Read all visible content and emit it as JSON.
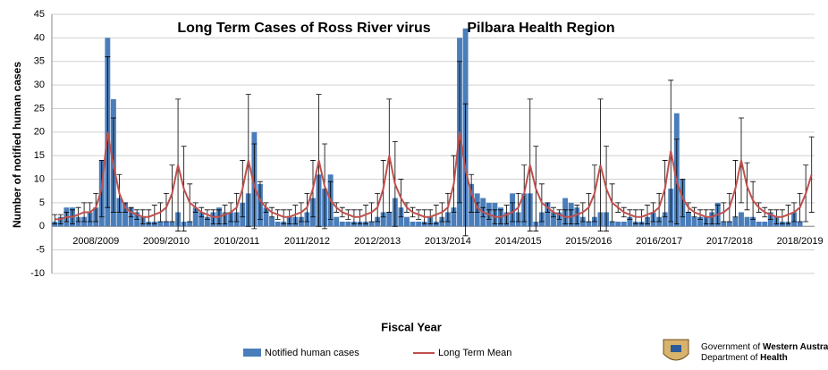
{
  "chart_data": {
    "type": "bar_line",
    "title": "Long Term Cases of Ross River virus",
    "region": "Pilbara Health Region",
    "xlabel": "Fiscal Year",
    "ylabel": "Number of notified human cases",
    "ylim": [
      -10,
      45
    ],
    "yticks": [
      -10,
      -5,
      0,
      5,
      10,
      15,
      20,
      25,
      30,
      35,
      40,
      45
    ],
    "grid": true,
    "categories": [
      null,
      null,
      null,
      null,
      null,
      null,
      null,
      "2008/2009",
      null,
      null,
      null,
      null,
      null,
      null,
      null,
      null,
      null,
      null,
      null,
      "2009/2010",
      null,
      null,
      null,
      null,
      null,
      null,
      null,
      null,
      null,
      null,
      null,
      "2010/2011",
      null,
      null,
      null,
      null,
      null,
      null,
      null,
      null,
      null,
      null,
      null,
      "2011/2012",
      null,
      null,
      null,
      null,
      null,
      null,
      null,
      null,
      null,
      null,
      null,
      "2012/2013",
      null,
      null,
      null,
      null,
      null,
      null,
      null,
      null,
      null,
      null,
      null,
      "2013/2014",
      null,
      null,
      null,
      null,
      null,
      null,
      null,
      null,
      null,
      null,
      null,
      "2014/2015",
      null,
      null,
      null,
      null,
      null,
      null,
      null,
      null,
      null,
      null,
      null,
      "2015/2016",
      null,
      null,
      null,
      null,
      null,
      null,
      null,
      null,
      null,
      null,
      null,
      "2016/2017",
      null,
      null,
      null,
      null,
      null,
      null,
      null,
      null,
      null,
      null,
      null,
      "2017/2018",
      null,
      null,
      null,
      null,
      null,
      null,
      null,
      null,
      null,
      null,
      null,
      "2018/2019",
      null,
      null
    ],
    "series": [
      {
        "name": "Notified human cases",
        "color": "#4a7ebb",
        "values": [
          1,
          2,
          4,
          4,
          2,
          2,
          3,
          4,
          14,
          40,
          27,
          6,
          5,
          4,
          3,
          2,
          1,
          1,
          1,
          1,
          1,
          3,
          1,
          1,
          4,
          3,
          2,
          3,
          4,
          3,
          3,
          3,
          5,
          7,
          20,
          9,
          4,
          2,
          1,
          1,
          2,
          2,
          2,
          3,
          6,
          11,
          8,
          11,
          2,
          1,
          1,
          1,
          1,
          1,
          1,
          2,
          3,
          3,
          6,
          4,
          2,
          1,
          1,
          1,
          2,
          1,
          2,
          3,
          4,
          40,
          42,
          9,
          7,
          6,
          5,
          5,
          4,
          3,
          7,
          3,
          7,
          7,
          1,
          3,
          5,
          3,
          3,
          6,
          5,
          4,
          2,
          1,
          2,
          3,
          3,
          1,
          1,
          1,
          2,
          1,
          1,
          2,
          3,
          2,
          3,
          8,
          24,
          10,
          3,
          2,
          2,
          2,
          3,
          5,
          1,
          1,
          2,
          3,
          2,
          2,
          1,
          1,
          3,
          2,
          1,
          1,
          3,
          1,
          0,
          0
        ]
      },
      {
        "name": "Long Term Mean",
        "color": "#c0504d",
        "values": [
          1.5,
          1.5,
          2,
          2,
          2.5,
          3,
          3,
          4,
          8,
          20,
          13,
          7,
          4,
          3,
          2.5,
          2,
          2,
          2.5,
          3,
          4,
          7,
          13,
          8,
          5,
          4,
          3,
          2.5,
          2,
          2,
          2.5,
          3,
          4,
          8,
          14,
          8.5,
          5.5,
          4,
          3,
          2.5,
          2,
          2,
          2.5,
          3,
          4,
          8,
          14,
          8.5,
          5.5,
          4,
          3,
          2.5,
          2,
          2,
          2.5,
          3,
          4,
          8,
          15,
          9,
          6,
          4,
          3,
          2.5,
          2,
          2,
          2.5,
          3,
          4,
          9,
          20,
          12,
          7,
          4,
          3,
          2.5,
          2,
          2,
          2.5,
          3,
          4,
          7,
          13,
          8,
          5,
          4,
          3,
          2.5,
          2,
          2,
          2.5,
          3,
          4,
          7,
          13,
          8,
          5,
          4,
          3,
          2.5,
          2,
          2,
          2.5,
          3,
          4,
          8,
          16,
          9.5,
          6,
          4,
          3,
          2.5,
          2,
          2,
          2.5,
          3,
          4,
          8,
          14,
          8.5,
          5.5,
          4,
          3,
          2.5,
          2,
          2,
          2.5,
          3,
          4,
          7,
          11
        ],
        "errors": [
          1,
          1,
          1,
          1.5,
          1.5,
          2,
          2,
          3,
          6,
          16,
          10,
          4,
          1,
          1,
          1,
          1.5,
          1.5,
          2,
          2,
          3,
          6,
          14,
          9,
          4,
          1,
          1,
          1,
          1.5,
          1.5,
          2,
          2,
          3,
          6,
          14,
          9,
          4,
          1,
          1,
          1,
          1.5,
          1.5,
          2,
          2,
          3,
          6,
          14,
          9,
          4,
          1,
          1,
          1,
          1.5,
          1.5,
          2,
          2,
          3,
          6,
          12,
          9,
          4,
          1,
          1,
          1,
          1.5,
          1.5,
          2,
          2,
          3,
          6,
          15,
          14,
          4,
          1,
          1,
          1,
          1.5,
          1.5,
          2,
          2,
          3,
          6,
          14,
          9,
          4,
          1,
          1,
          1,
          1.5,
          1.5,
          2,
          2,
          3,
          6,
          14,
          9,
          4,
          1,
          1,
          1,
          1.5,
          1.5,
          2,
          2,
          3,
          6,
          15,
          9,
          4,
          1,
          1,
          1,
          1.5,
          1.5,
          2,
          2,
          3,
          6,
          9,
          5,
          4,
          1,
          1,
          1,
          1.5,
          1.5,
          2,
          2,
          3,
          6,
          8
        ]
      }
    ],
    "logo": {
      "prefix": "Government of",
      "state": "Western Australia",
      "dept": "Department of",
      "dept_bold": "Health"
    }
  }
}
